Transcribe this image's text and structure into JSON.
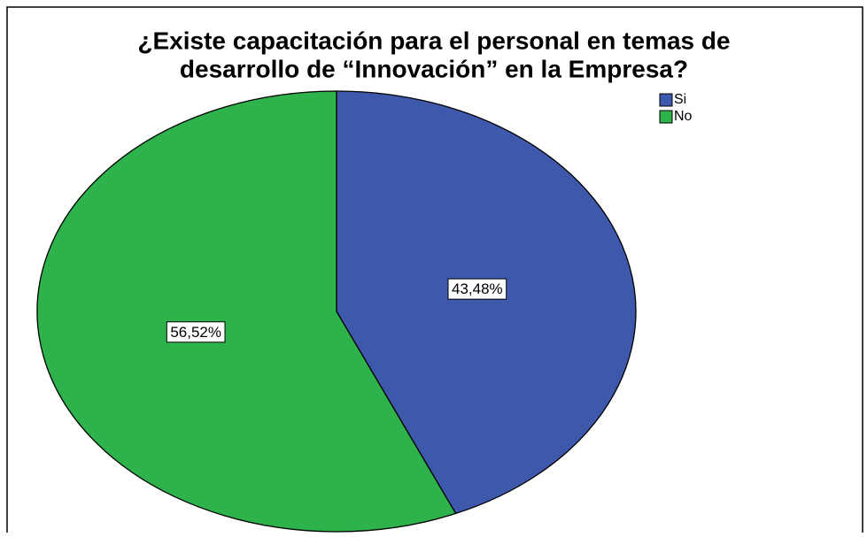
{
  "chart_data": {
    "type": "pie",
    "title": [
      "¿Existe capacitación para el personal en temas de",
      "desarrollo de “Innovación” en la Empresa?"
    ],
    "categories": [
      "Si",
      "No"
    ],
    "values": [
      43.48,
      56.52
    ],
    "value_labels": [
      "43,48%",
      "56,52%"
    ],
    "colors": [
      "#3e58ac",
      "#2eb24b"
    ],
    "legend": "top-right"
  }
}
